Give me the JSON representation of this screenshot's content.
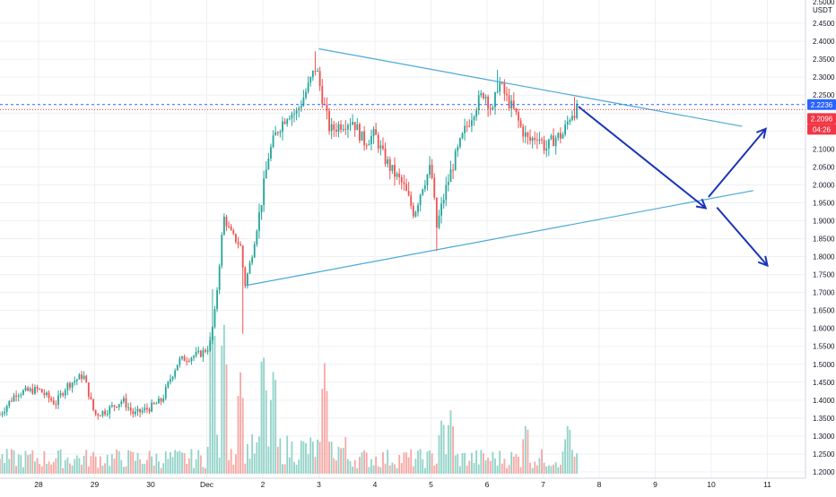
{
  "chart_data": {
    "type": "candlestick",
    "symbol_currency": "USDT",
    "y_axis": {
      "range": [
        1.195,
        2.5
      ],
      "ticks": [
        1.2,
        1.25,
        1.3,
        1.35,
        1.4,
        1.45,
        1.5,
        1.55,
        1.6,
        1.65,
        1.7,
        1.75,
        1.8,
        1.85,
        1.9,
        1.95,
        2.0,
        2.05,
        2.1,
        2.15,
        2.2,
        2.25,
        2.3,
        2.35,
        2.4,
        2.45
      ],
      "tick_labels": [
        "1.2000",
        "1.2500",
        "1.3000",
        "1.3500",
        "1.4000",
        "1.4500",
        "1.5000",
        "1.5500",
        "1.6000",
        "1.6500",
        "1.7000",
        "1.7500",
        "1.8000",
        "1.8500",
        "1.9000",
        "1.9500",
        "2.0000",
        "2.0500",
        "2.1000",
        "2.1500",
        "2.2000",
        "2.2500",
        "2.3000",
        "2.3500",
        "2.4000",
        "2.4500"
      ],
      "top_label": "2.5000"
    },
    "x_axis": {
      "labels": [
        {
          "text": "28",
          "day": 0
        },
        {
          "text": "29",
          "day": 1
        },
        {
          "text": "30",
          "day": 2
        },
        {
          "text": "Dec",
          "day": 3
        },
        {
          "text": "2",
          "day": 4
        },
        {
          "text": "3",
          "day": 5
        },
        {
          "text": "4",
          "day": 6
        },
        {
          "text": "5",
          "day": 7
        },
        {
          "text": "6",
          "day": 8
        },
        {
          "text": "7",
          "day": 9
        },
        {
          "text": "8",
          "day": 10
        },
        {
          "text": "9",
          "day": 11
        },
        {
          "text": "10",
          "day": 12
        },
        {
          "text": "11",
          "day": 13
        }
      ]
    },
    "grid": true,
    "price_markers": [
      {
        "value": 2.2236,
        "label": "2.2236",
        "color": "#2962ff",
        "line": "dashed"
      },
      {
        "value": 2.2096,
        "label": "2.2096",
        "color": "#f23645",
        "line": "dotted"
      },
      {
        "label": "04:26",
        "color": "#f23645"
      }
    ],
    "trendlines": [
      {
        "name": "upper",
        "points": [
          [
            5.0,
            2.379
          ],
          [
            12.55,
            2.163
          ]
        ],
        "color": "#4aa8d8"
      },
      {
        "name": "lower",
        "points": [
          [
            3.68,
            1.719
          ],
          [
            12.75,
            1.984
          ]
        ],
        "color": "#4aa8d8"
      }
    ],
    "projection_arrows": [
      {
        "from": [
          9.63,
          2.218
        ],
        "to": [
          11.9,
          1.935
        ],
        "color": "#1a35b8"
      },
      {
        "from": [
          11.95,
          1.966
        ],
        "to": [
          12.97,
          2.156
        ],
        "color": "#1a35b8"
      },
      {
        "from": [
          12.1,
          1.937
        ],
        "to": [
          13.0,
          1.775
        ],
        "color": "#1a35b8"
      }
    ],
    "anchors": [
      [
        -0.69,
        1.36
      ],
      [
        -0.4,
        1.42
      ],
      [
        0.0,
        1.43
      ],
      [
        0.3,
        1.39
      ],
      [
        0.5,
        1.44
      ],
      [
        0.8,
        1.47
      ],
      [
        1.0,
        1.36
      ],
      [
        1.2,
        1.37
      ],
      [
        1.5,
        1.4
      ],
      [
        1.7,
        1.36
      ],
      [
        2.0,
        1.38
      ],
      [
        2.2,
        1.4
      ],
      [
        2.35,
        1.46
      ],
      [
        2.5,
        1.51
      ],
      [
        2.7,
        1.52
      ],
      [
        2.9,
        1.53
      ],
      [
        3.05,
        1.55
      ],
      [
        3.15,
        1.65
      ],
      [
        3.3,
        1.91
      ],
      [
        3.45,
        1.86
      ],
      [
        3.6,
        1.83
      ],
      [
        3.68,
        1.72
      ],
      [
        3.8,
        1.8
      ],
      [
        3.95,
        1.93
      ],
      [
        4.1,
        2.08
      ],
      [
        4.25,
        2.15
      ],
      [
        4.45,
        2.2
      ],
      [
        4.6,
        2.2
      ],
      [
        4.8,
        2.27
      ],
      [
        4.95,
        2.33
      ],
      [
        5.05,
        2.25
      ],
      [
        5.2,
        2.15
      ],
      [
        5.4,
        2.17
      ],
      [
        5.6,
        2.18
      ],
      [
        5.8,
        2.12
      ],
      [
        6.0,
        2.14
      ],
      [
        6.15,
        2.08
      ],
      [
        6.3,
        2.04
      ],
      [
        6.5,
        2.0
      ],
      [
        6.7,
        1.92
      ],
      [
        6.85,
        2.0
      ],
      [
        7.0,
        2.05
      ],
      [
        7.1,
        1.88
      ],
      [
        7.25,
        1.98
      ],
      [
        7.4,
        2.06
      ],
      [
        7.6,
        2.15
      ],
      [
        7.8,
        2.22
      ],
      [
        7.95,
        2.26
      ],
      [
        8.1,
        2.2
      ],
      [
        8.2,
        2.29
      ],
      [
        8.35,
        2.24
      ],
      [
        8.5,
        2.2
      ],
      [
        8.6,
        2.16
      ],
      [
        8.75,
        2.12
      ],
      [
        8.9,
        2.14
      ],
      [
        9.05,
        2.1
      ],
      [
        9.2,
        2.13
      ],
      [
        9.35,
        2.14
      ],
      [
        9.5,
        2.2
      ],
      [
        9.63,
        2.21
      ]
    ],
    "volume": {
      "spike_days": [
        3.1,
        3.3,
        3.6,
        4.0,
        4.2,
        5.1,
        7.2,
        7.35,
        8.7,
        9.45
      ],
      "spike_scale": [
        1.0,
        0.85,
        0.55,
        0.7,
        0.6,
        0.6,
        0.5,
        0.55,
        0.45,
        0.45
      ]
    },
    "colors": {
      "up": "#26a69a",
      "down": "#ef5350",
      "volume_up": "#93d3c9",
      "volume_down": "#f7a8a4",
      "grid": "#eef0f3",
      "axis_text": "#131722"
    }
  }
}
